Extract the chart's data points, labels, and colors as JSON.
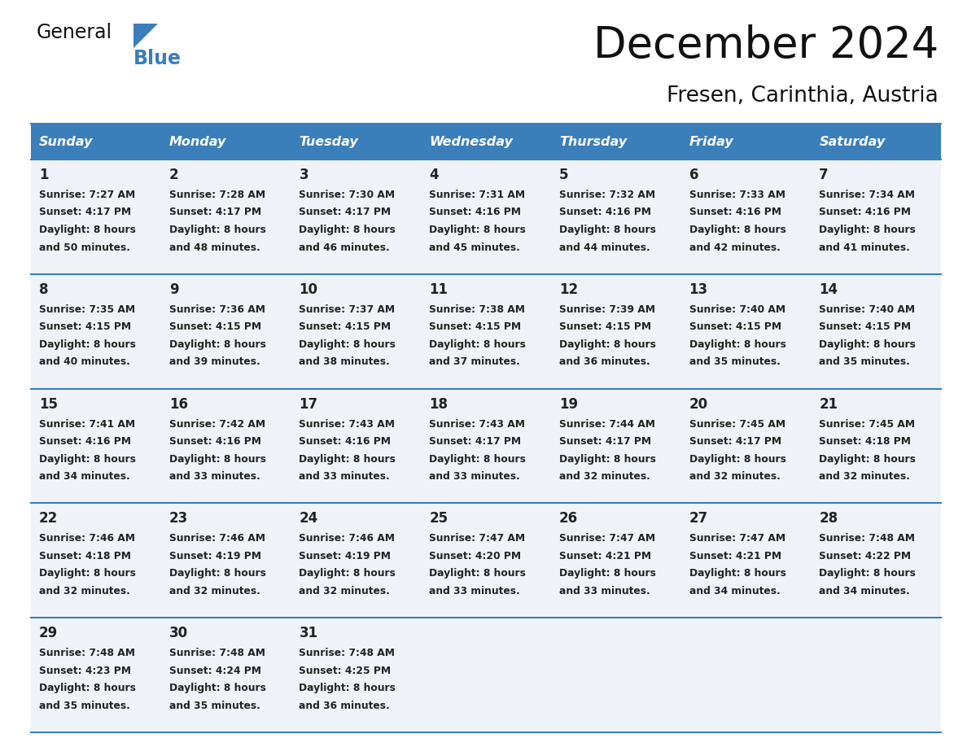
{
  "title": "December 2024",
  "subtitle": "Fresen, Carinthia, Austria",
  "header_bg_color": "#3a7eba",
  "header_text_color": "#ffffff",
  "cell_bg_color": "#eff3f7",
  "text_color": "#222222",
  "line_color": "#3a7eba",
  "days_of_week": [
    "Sunday",
    "Monday",
    "Tuesday",
    "Wednesday",
    "Thursday",
    "Friday",
    "Saturday"
  ],
  "weeks": [
    [
      {
        "day": "1",
        "sunrise": "7:27 AM",
        "sunset": "4:17 PM",
        "daylight_l1": "Daylight: 8 hours",
        "daylight_l2": "and 50 minutes."
      },
      {
        "day": "2",
        "sunrise": "7:28 AM",
        "sunset": "4:17 PM",
        "daylight_l1": "Daylight: 8 hours",
        "daylight_l2": "and 48 minutes."
      },
      {
        "day": "3",
        "sunrise": "7:30 AM",
        "sunset": "4:17 PM",
        "daylight_l1": "Daylight: 8 hours",
        "daylight_l2": "and 46 minutes."
      },
      {
        "day": "4",
        "sunrise": "7:31 AM",
        "sunset": "4:16 PM",
        "daylight_l1": "Daylight: 8 hours",
        "daylight_l2": "and 45 minutes."
      },
      {
        "day": "5",
        "sunrise": "7:32 AM",
        "sunset": "4:16 PM",
        "daylight_l1": "Daylight: 8 hours",
        "daylight_l2": "and 44 minutes."
      },
      {
        "day": "6",
        "sunrise": "7:33 AM",
        "sunset": "4:16 PM",
        "daylight_l1": "Daylight: 8 hours",
        "daylight_l2": "and 42 minutes."
      },
      {
        "day": "7",
        "sunrise": "7:34 AM",
        "sunset": "4:16 PM",
        "daylight_l1": "Daylight: 8 hours",
        "daylight_l2": "and 41 minutes."
      }
    ],
    [
      {
        "day": "8",
        "sunrise": "7:35 AM",
        "sunset": "4:15 PM",
        "daylight_l1": "Daylight: 8 hours",
        "daylight_l2": "and 40 minutes."
      },
      {
        "day": "9",
        "sunrise": "7:36 AM",
        "sunset": "4:15 PM",
        "daylight_l1": "Daylight: 8 hours",
        "daylight_l2": "and 39 minutes."
      },
      {
        "day": "10",
        "sunrise": "7:37 AM",
        "sunset": "4:15 PM",
        "daylight_l1": "Daylight: 8 hours",
        "daylight_l2": "and 38 minutes."
      },
      {
        "day": "11",
        "sunrise": "7:38 AM",
        "sunset": "4:15 PM",
        "daylight_l1": "Daylight: 8 hours",
        "daylight_l2": "and 37 minutes."
      },
      {
        "day": "12",
        "sunrise": "7:39 AM",
        "sunset": "4:15 PM",
        "daylight_l1": "Daylight: 8 hours",
        "daylight_l2": "and 36 minutes."
      },
      {
        "day": "13",
        "sunrise": "7:40 AM",
        "sunset": "4:15 PM",
        "daylight_l1": "Daylight: 8 hours",
        "daylight_l2": "and 35 minutes."
      },
      {
        "day": "14",
        "sunrise": "7:40 AM",
        "sunset": "4:15 PM",
        "daylight_l1": "Daylight: 8 hours",
        "daylight_l2": "and 35 minutes."
      }
    ],
    [
      {
        "day": "15",
        "sunrise": "7:41 AM",
        "sunset": "4:16 PM",
        "daylight_l1": "Daylight: 8 hours",
        "daylight_l2": "and 34 minutes."
      },
      {
        "day": "16",
        "sunrise": "7:42 AM",
        "sunset": "4:16 PM",
        "daylight_l1": "Daylight: 8 hours",
        "daylight_l2": "and 33 minutes."
      },
      {
        "day": "17",
        "sunrise": "7:43 AM",
        "sunset": "4:16 PM",
        "daylight_l1": "Daylight: 8 hours",
        "daylight_l2": "and 33 minutes."
      },
      {
        "day": "18",
        "sunrise": "7:43 AM",
        "sunset": "4:17 PM",
        "daylight_l1": "Daylight: 8 hours",
        "daylight_l2": "and 33 minutes."
      },
      {
        "day": "19",
        "sunrise": "7:44 AM",
        "sunset": "4:17 PM",
        "daylight_l1": "Daylight: 8 hours",
        "daylight_l2": "and 32 minutes."
      },
      {
        "day": "20",
        "sunrise": "7:45 AM",
        "sunset": "4:17 PM",
        "daylight_l1": "Daylight: 8 hours",
        "daylight_l2": "and 32 minutes."
      },
      {
        "day": "21",
        "sunrise": "7:45 AM",
        "sunset": "4:18 PM",
        "daylight_l1": "Daylight: 8 hours",
        "daylight_l2": "and 32 minutes."
      }
    ],
    [
      {
        "day": "22",
        "sunrise": "7:46 AM",
        "sunset": "4:18 PM",
        "daylight_l1": "Daylight: 8 hours",
        "daylight_l2": "and 32 minutes."
      },
      {
        "day": "23",
        "sunrise": "7:46 AM",
        "sunset": "4:19 PM",
        "daylight_l1": "Daylight: 8 hours",
        "daylight_l2": "and 32 minutes."
      },
      {
        "day": "24",
        "sunrise": "7:46 AM",
        "sunset": "4:19 PM",
        "daylight_l1": "Daylight: 8 hours",
        "daylight_l2": "and 32 minutes."
      },
      {
        "day": "25",
        "sunrise": "7:47 AM",
        "sunset": "4:20 PM",
        "daylight_l1": "Daylight: 8 hours",
        "daylight_l2": "and 33 minutes."
      },
      {
        "day": "26",
        "sunrise": "7:47 AM",
        "sunset": "4:21 PM",
        "daylight_l1": "Daylight: 8 hours",
        "daylight_l2": "and 33 minutes."
      },
      {
        "day": "27",
        "sunrise": "7:47 AM",
        "sunset": "4:21 PM",
        "daylight_l1": "Daylight: 8 hours",
        "daylight_l2": "and 34 minutes."
      },
      {
        "day": "28",
        "sunrise": "7:48 AM",
        "sunset": "4:22 PM",
        "daylight_l1": "Daylight: 8 hours",
        "daylight_l2": "and 34 minutes."
      }
    ],
    [
      {
        "day": "29",
        "sunrise": "7:48 AM",
        "sunset": "4:23 PM",
        "daylight_l1": "Daylight: 8 hours",
        "daylight_l2": "and 35 minutes."
      },
      {
        "day": "30",
        "sunrise": "7:48 AM",
        "sunset": "4:24 PM",
        "daylight_l1": "Daylight: 8 hours",
        "daylight_l2": "and 35 minutes."
      },
      {
        "day": "31",
        "sunrise": "7:48 AM",
        "sunset": "4:25 PM",
        "daylight_l1": "Daylight: 8 hours",
        "daylight_l2": "and 36 minutes."
      },
      null,
      null,
      null,
      null
    ]
  ]
}
